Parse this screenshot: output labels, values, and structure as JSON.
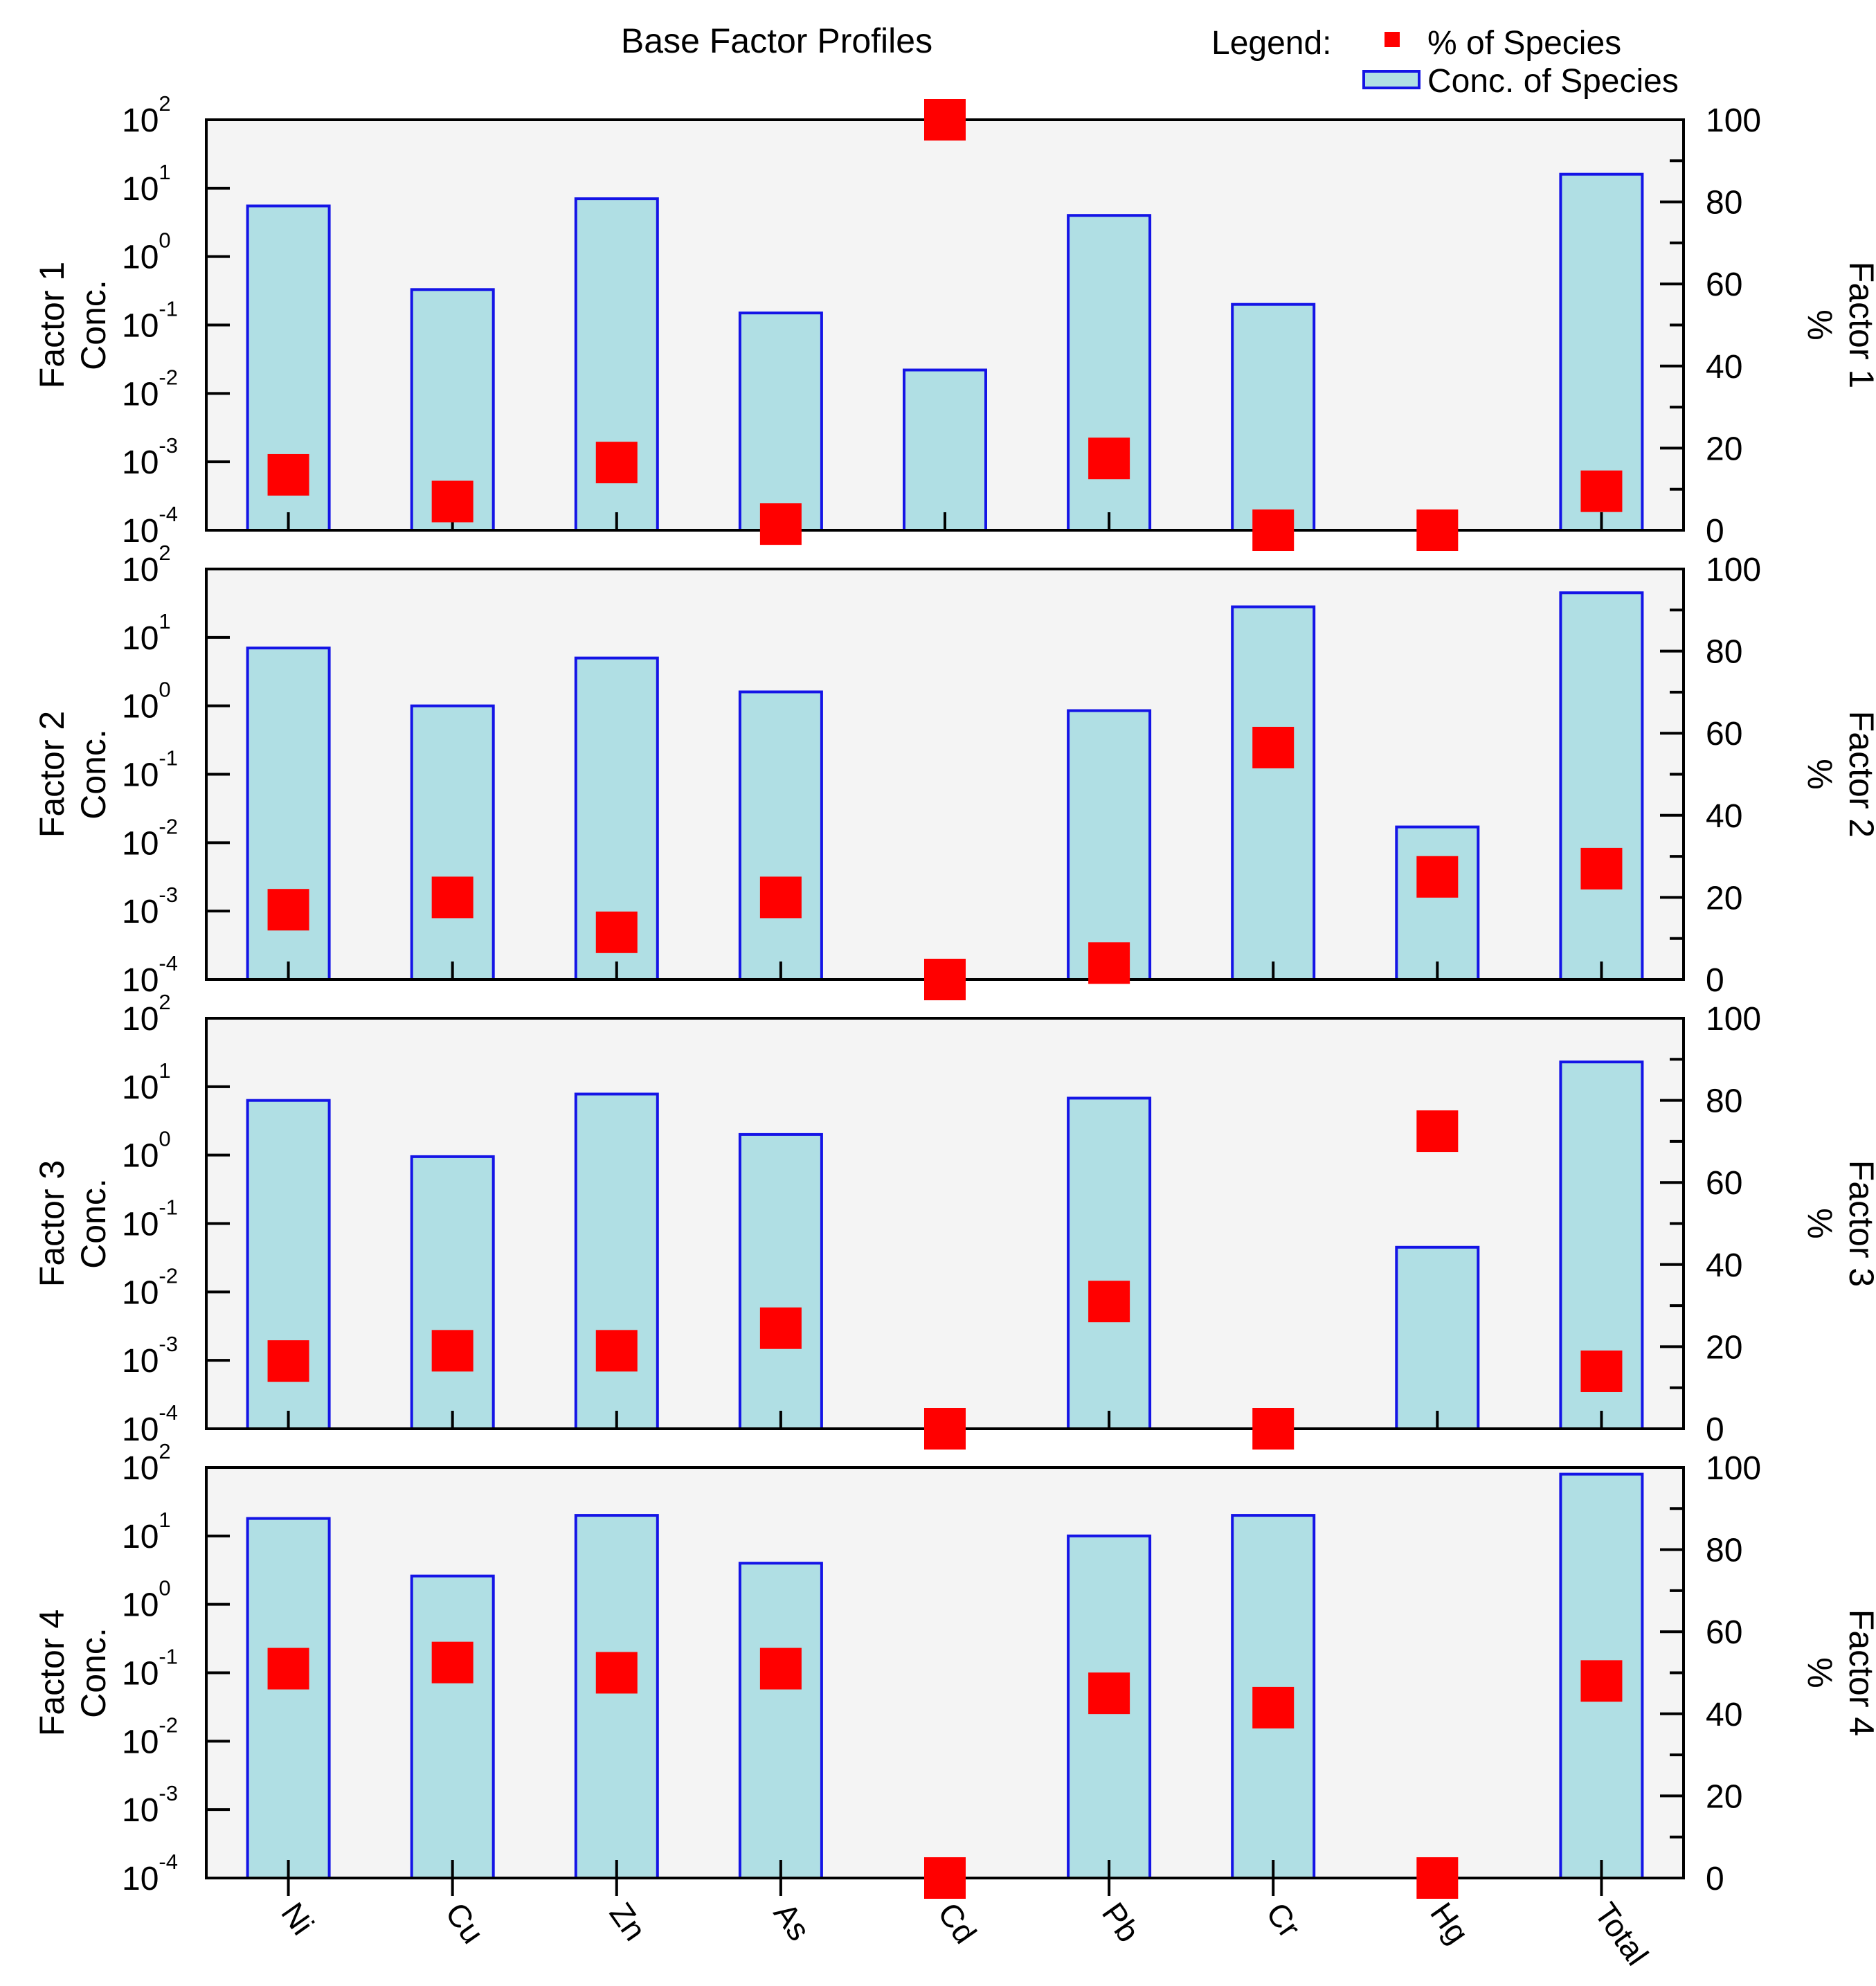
{
  "title": "Base Factor Profiles",
  "legend": {
    "heading": "Legend:",
    "percent_label": "% of Species",
    "conc_label": "Conc. of Species"
  },
  "colors": {
    "plot_background": "#f4f4f4",
    "bar_fill": "#b0dfe4",
    "bar_stroke": "#1414e6",
    "marker": "#ff0000",
    "axis": "#000000"
  },
  "chart_data": {
    "type": "bar",
    "categories": [
      "Ni",
      "Cu",
      "Zn",
      "As",
      "Cd",
      "Pb",
      "Cr",
      "Hg",
      "Total"
    ],
    "left_axis": {
      "scale": "log",
      "ylim": [
        0.0001,
        100
      ],
      "tick_base": "10",
      "tick_exponents": [
        "-4",
        "-3",
        "-2",
        "-1",
        "0",
        "1",
        "2"
      ]
    },
    "right_axis": {
      "ylim": [
        0,
        100
      ],
      "ticks": [
        "0",
        "20",
        "40",
        "60",
        "80",
        "100"
      ]
    },
    "series_names": [
      "Conc. of Species",
      "% of Species"
    ],
    "panels": [
      {
        "left_label": [
          "Factor 1",
          "Conc."
        ],
        "right_label": [
          "Factor 1",
          "%"
        ],
        "conc": [
          5.5,
          0.33,
          7,
          0.15,
          0.022,
          4,
          0.2,
          null,
          16
        ],
        "percent": [
          13.5,
          7,
          16.5,
          1.5,
          100,
          17.5,
          0,
          0,
          9.5
        ]
      },
      {
        "left_label": [
          "Factor 2",
          "Conc."
        ],
        "right_label": [
          "Factor 2",
          "%"
        ],
        "conc": [
          7,
          1,
          5,
          1.6,
          null,
          0.85,
          28,
          0.017,
          45
        ],
        "percent": [
          17,
          20,
          11.5,
          20,
          0,
          4,
          56.5,
          25,
          27
        ]
      },
      {
        "left_label": [
          "Factor 3",
          "Conc."
        ],
        "right_label": [
          "Factor 3",
          "%"
        ],
        "conc": [
          6.3,
          0.95,
          7.8,
          2,
          null,
          6.8,
          null,
          0.045,
          23
        ],
        "percent": [
          16.5,
          19,
          19,
          24.5,
          0,
          31,
          0,
          72.5,
          14
        ]
      },
      {
        "left_label": [
          "Factor 4",
          "Conc."
        ],
        "right_label": [
          "Factor 4",
          "%"
        ],
        "conc": [
          18,
          2.6,
          20,
          4,
          null,
          10,
          20,
          null,
          80
        ],
        "percent": [
          51,
          52.5,
          50,
          51,
          0,
          45,
          41.5,
          0,
          48
        ]
      }
    ]
  }
}
